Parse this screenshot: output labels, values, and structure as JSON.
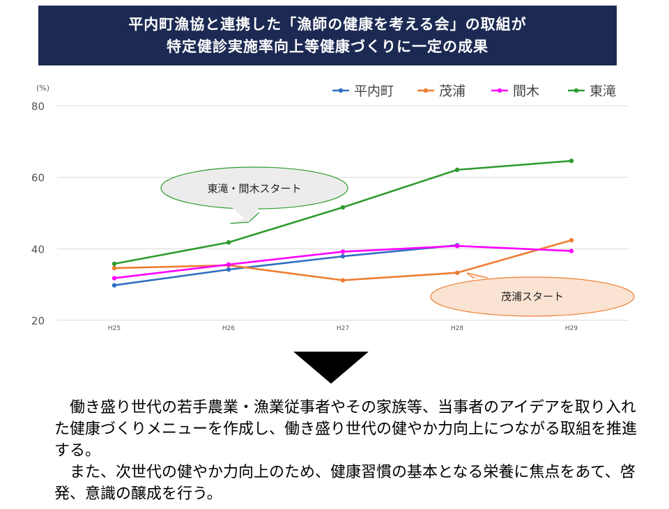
{
  "header": {
    "title_line1": "平内町漁協と連携した「漁師の健康を考える会」の取組が",
    "title_line2": "特定健診実施率向上等健康づくりに一定の成果"
  },
  "chart_data": {
    "type": "line",
    "unit_label": "(%)",
    "categories": [
      "H25",
      "H26",
      "H27",
      "H28",
      "H29"
    ],
    "ylim": [
      20,
      80
    ],
    "yticks": [
      20,
      40,
      60,
      80
    ],
    "grid": true,
    "legend_position": "top-right",
    "series": [
      {
        "name": "平内町",
        "color": "#2e6fc0",
        "values": [
          29.8,
          34.2,
          37.9,
          41.0,
          null
        ]
      },
      {
        "name": "茂浦",
        "color": "#ed7d31",
        "values": [
          34.6,
          35.4,
          31.2,
          33.3,
          42.4
        ]
      },
      {
        "name": "間木",
        "color": "#ff00ff",
        "values": [
          31.8,
          35.6,
          39.2,
          40.8,
          39.4
        ]
      },
      {
        "name": "東滝",
        "color": "#2e9b2e",
        "values": [
          35.8,
          41.8,
          51.6,
          62.1,
          64.6
        ]
      }
    ],
    "annotations": [
      {
        "text": "東滝・間木スタート",
        "fill": "#ececec",
        "stroke": "#2e9b2e"
      },
      {
        "text": "茂浦スタート",
        "fill": "#fbe3d3",
        "stroke": "#ed7d31"
      }
    ]
  },
  "body": {
    "paragraph1": "働き盛り世代の若手農業・漁業従事者やその家族等、当事者のアイデアを取り入れた健康づくりメニューを作成し、働き盛り世代の健やか力向上につながる取組を推進する。",
    "paragraph2": "また、次世代の健やか力向上のため、健康習慣の基本となる栄養に焦点をあて、啓発、意識の醸成を行う。"
  }
}
